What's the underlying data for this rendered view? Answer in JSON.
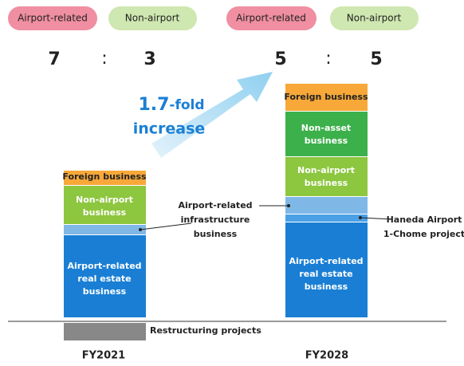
{
  "legend_left": {
    "airport": "Airport-related",
    "non_airport": "Non-airport",
    "ratio_a": "7",
    "separator": ":",
    "ratio_b": "3"
  },
  "legend_right": {
    "airport": "Airport-related",
    "non_airport": "Non-airport",
    "ratio_a": "5",
    "separator": ":",
    "ratio_b": "5"
  },
  "growth": {
    "amount": "1.7",
    "suffix": "-fold",
    "word": "increase"
  },
  "fy2021": {
    "label": "FY2021",
    "foreign": "Foreign business",
    "non_airport": [
      "Non-airport",
      "business"
    ],
    "real_estate": [
      "Airport-related",
      "real estate",
      "business"
    ]
  },
  "fy2028": {
    "label": "FY2028",
    "foreign": "Foreign business",
    "non_asset": [
      "Non-asset",
      "business"
    ],
    "non_airport": [
      "Non-airport",
      "business"
    ],
    "real_estate": [
      "Airport-related",
      "real estate",
      "business"
    ]
  },
  "annotations": {
    "infrastructure": [
      "Airport-related",
      "infrastructure",
      "business"
    ],
    "haneda": [
      "Haneda Airport",
      "1-Chome project"
    ],
    "restructuring": "Restructuring projects"
  }
}
